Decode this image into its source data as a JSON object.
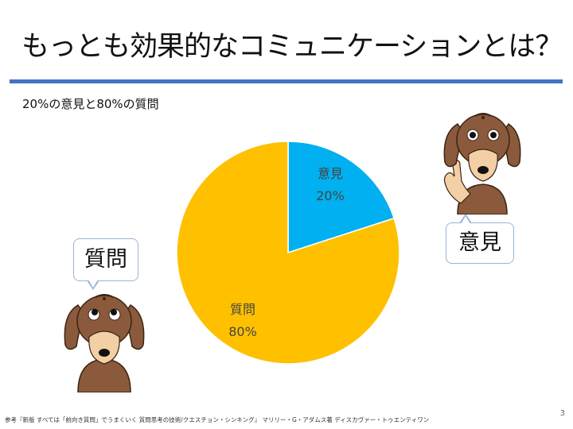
{
  "slide": {
    "title": "もっとも効果的なコミュニケーションとは？",
    "subtitle": "20%の意見と80%の質問",
    "footnote": "参考『新版 すべては「前向き質問」でうまくいく 質問思考の技術/クエスチョン・シンキング』 マリリー・G・アダムス著 ディスカヴァー・トゥエンティワン",
    "page_number": "3"
  },
  "bubbles": {
    "left": "質問",
    "right": "意見"
  },
  "chart_data": {
    "type": "pie",
    "slices": [
      {
        "name": "意見",
        "value": 20,
        "label": "20%",
        "color": "#00b0f0"
      },
      {
        "name": "質問",
        "value": 80,
        "label": "80%",
        "color": "#ffc000"
      }
    ]
  }
}
